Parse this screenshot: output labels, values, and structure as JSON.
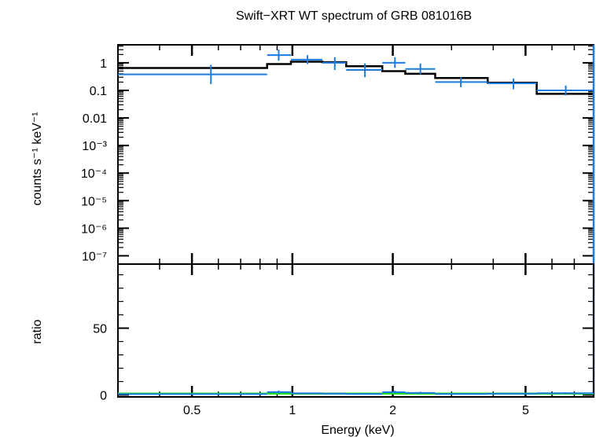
{
  "chart_data": [
    {
      "type": "scatter",
      "title": "Swift−XRT WT spectrum of GRB 081016B",
      "ylabel": "counts s⁻¹ keV⁻¹",
      "xscale": "log",
      "yscale": "log",
      "xlim": [
        0.3,
        8.0
      ],
      "ylim": [
        5e-08,
        4.5
      ],
      "yticks": [
        {
          "value": 1,
          "label": "1"
        },
        {
          "value": 0.1,
          "label": "0.1"
        },
        {
          "value": 0.01,
          "label": "0.01"
        },
        {
          "value": 0.001,
          "label": "10⁻³"
        },
        {
          "value": 0.0001,
          "label": "10⁻⁴"
        },
        {
          "value": 1e-05,
          "label": "10⁻⁵"
        },
        {
          "value": 1e-06,
          "label": "10⁻⁶"
        },
        {
          "value": 1e-07,
          "label": "10⁻⁷"
        }
      ],
      "data_color": "#1a7be0",
      "model_color": "#000000",
      "data": [
        {
          "x_lo": 0.3,
          "x_hi": 0.84,
          "x": 0.57,
          "y": 0.38,
          "y_lo": 0.17,
          "y_hi": 0.85
        },
        {
          "x_lo": 0.84,
          "x_hi": 0.99,
          "x": 0.91,
          "y": 1.9,
          "y_lo": 1.2,
          "y_hi": 3.0
        },
        {
          "x_lo": 0.99,
          "x_hi": 1.23,
          "x": 1.11,
          "y": 1.3,
          "y_lo": 0.9,
          "y_hi": 1.9
        },
        {
          "x_lo": 1.23,
          "x_hi": 1.45,
          "x": 1.34,
          "y": 1.0,
          "y_lo": 0.55,
          "y_hi": 1.6
        },
        {
          "x_lo": 1.45,
          "x_hi": 1.86,
          "x": 1.65,
          "y": 0.55,
          "y_lo": 0.3,
          "y_hi": 0.95
        },
        {
          "x_lo": 1.86,
          "x_hi": 2.18,
          "x": 2.03,
          "y": 1.0,
          "y_lo": 0.65,
          "y_hi": 1.6
        },
        {
          "x_lo": 2.18,
          "x_hi": 2.68,
          "x": 2.42,
          "y": 0.6,
          "y_lo": 0.38,
          "y_hi": 0.95
        },
        {
          "x_lo": 2.68,
          "x_hi": 3.85,
          "x": 3.2,
          "y": 0.2,
          "y_lo": 0.13,
          "y_hi": 0.3
        },
        {
          "x_lo": 3.85,
          "x_hi": 5.4,
          "x": 4.6,
          "y": 0.18,
          "y_lo": 0.11,
          "y_hi": 0.27
        },
        {
          "x_lo": 5.4,
          "x_hi": 8.0,
          "x": 6.6,
          "y": 0.1,
          "y_lo": 0.065,
          "y_hi": 0.15
        }
      ],
      "model": [
        {
          "x_lo": 0.3,
          "x_hi": 0.84,
          "y": 0.65
        },
        {
          "x_lo": 0.84,
          "x_hi": 0.99,
          "y": 0.9
        },
        {
          "x_lo": 0.99,
          "x_hi": 1.23,
          "y": 1.1
        },
        {
          "x_lo": 1.23,
          "x_hi": 1.45,
          "y": 1.05
        },
        {
          "x_lo": 1.45,
          "x_hi": 1.86,
          "y": 0.75
        },
        {
          "x_lo": 1.86,
          "x_hi": 2.18,
          "y": 0.5
        },
        {
          "x_lo": 2.18,
          "x_hi": 2.68,
          "y": 0.4
        },
        {
          "x_lo": 2.68,
          "x_hi": 3.85,
          "y": 0.28
        },
        {
          "x_lo": 3.85,
          "x_hi": 5.4,
          "y": 0.19
        },
        {
          "x_lo": 5.4,
          "x_hi": 8.0,
          "y": 0.075
        }
      ]
    },
    {
      "type": "scatter",
      "xlabel": "Energy (keV)",
      "ylabel": "ratio",
      "xscale": "log",
      "xlim": [
        0.3,
        8.0
      ],
      "ylim": [
        -1.5,
        98
      ],
      "xticks": [
        {
          "value": 0.5,
          "label": "0.5"
        },
        {
          "value": 1,
          "label": "1"
        },
        {
          "value": 2,
          "label": "2"
        },
        {
          "value": 5,
          "label": "5"
        }
      ],
      "yticks": [
        {
          "value": 0,
          "label": "0"
        },
        {
          "value": 50,
          "label": "50"
        }
      ],
      "reference_line": {
        "y": 1,
        "color": "#22dd22"
      },
      "data_color": "#1a7be0",
      "data": [
        {
          "x_lo": 0.3,
          "x_hi": 0.84,
          "x": 0.57,
          "y": 0.6,
          "y_lo": 0.3,
          "y_hi": 1.3
        },
        {
          "x_lo": 0.84,
          "x_hi": 0.99,
          "x": 0.91,
          "y": 2.1,
          "y_lo": 1.3,
          "y_hi": 3.3
        },
        {
          "x_lo": 0.99,
          "x_hi": 1.23,
          "x": 1.11,
          "y": 1.2,
          "y_lo": 0.8,
          "y_hi": 1.7
        },
        {
          "x_lo": 1.23,
          "x_hi": 1.45,
          "x": 1.34,
          "y": 1.0,
          "y_lo": 0.5,
          "y_hi": 1.5
        },
        {
          "x_lo": 1.45,
          "x_hi": 1.86,
          "x": 1.65,
          "y": 0.7,
          "y_lo": 0.4,
          "y_hi": 1.3
        },
        {
          "x_lo": 1.86,
          "x_hi": 2.18,
          "x": 2.03,
          "y": 2.0,
          "y_lo": 1.3,
          "y_hi": 3.2
        },
        {
          "x_lo": 2.18,
          "x_hi": 2.68,
          "x": 2.42,
          "y": 1.5,
          "y_lo": 0.9,
          "y_hi": 2.4
        },
        {
          "x_lo": 2.68,
          "x_hi": 3.85,
          "x": 3.2,
          "y": 0.7,
          "y_lo": 0.45,
          "y_hi": 1.1
        },
        {
          "x_lo": 3.85,
          "x_hi": 5.4,
          "x": 4.6,
          "y": 0.95,
          "y_lo": 0.6,
          "y_hi": 1.4
        },
        {
          "x_lo": 5.4,
          "x_hi": 8.0,
          "x": 6.6,
          "y": 1.3,
          "y_lo": 0.85,
          "y_hi": 2.0
        }
      ]
    }
  ]
}
